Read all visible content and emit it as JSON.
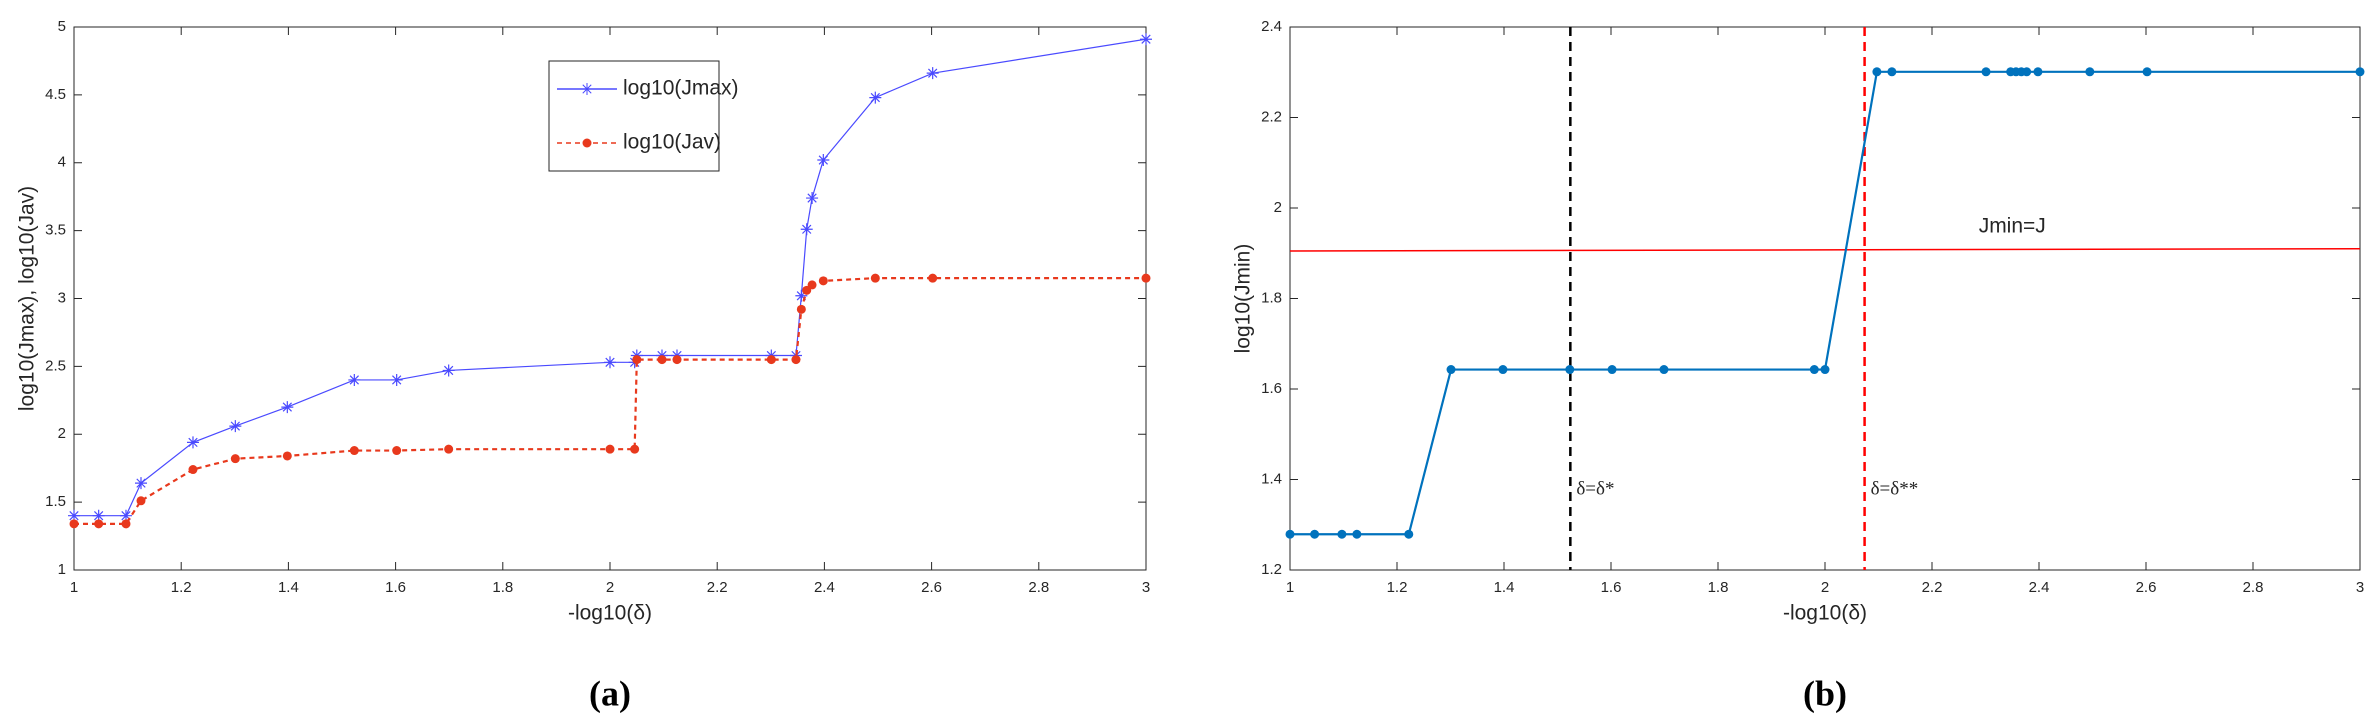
{
  "chart_data": [
    {
      "type": "line",
      "panel_label": "(a)",
      "x_label": "-log10(δ)",
      "y_label": "log10(Jmax), log10(Jav)",
      "xlim": [
        1,
        3
      ],
      "xticks": [
        1,
        1.2,
        1.4,
        1.6,
        1.8,
        2,
        2.2,
        2.4,
        2.6,
        2.8,
        3
      ],
      "ylim": [
        1,
        5
      ],
      "yticks": [
        1,
        1.5,
        2,
        2.5,
        3,
        3.5,
        4,
        4.5,
        5
      ],
      "grid": false,
      "legend": "top-center",
      "series": [
        {
          "name": "log10(Jmax)",
          "color": "#4a4aff",
          "marker": "star",
          "line_style": "solid",
          "x": [
            1,
            1.046,
            1.097,
            1.125,
            1.222,
            1.301,
            1.398,
            1.523,
            1.602,
            1.699,
            2,
            2.046,
            2.05,
            2.097,
            2.125,
            2.301,
            2.347,
            2.357,
            2.367,
            2.377,
            2.398,
            2.495,
            2.602,
            3
          ],
          "values": [
            1.4,
            1.4,
            1.4,
            1.64,
            1.94,
            2.06,
            2.2,
            2.4,
            2.4,
            2.47,
            2.53,
            2.53,
            2.58,
            2.58,
            2.58,
            2.58,
            2.58,
            3.02,
            3.51,
            3.74,
            4.02,
            4.48,
            4.66,
            4.91
          ]
        },
        {
          "name": "log10(Jav)",
          "color": "#e8391d",
          "marker": "dot",
          "line_style": "dashed",
          "x": [
            1,
            1.046,
            1.097,
            1.125,
            1.222,
            1.301,
            1.398,
            1.523,
            1.602,
            1.699,
            2,
            2.046,
            2.05,
            2.097,
            2.125,
            2.301,
            2.347,
            2.357,
            2.367,
            2.377,
            2.398,
            2.495,
            2.602,
            3
          ],
          "values": [
            1.34,
            1.34,
            1.34,
            1.51,
            1.74,
            1.82,
            1.84,
            1.88,
            1.88,
            1.89,
            1.89,
            1.89,
            2.55,
            2.55,
            2.55,
            2.55,
            2.55,
            2.92,
            3.06,
            3.1,
            3.13,
            3.15,
            3.15,
            3.15
          ]
        }
      ]
    },
    {
      "type": "line",
      "panel_label": "(b)",
      "x_label": "-log10(δ)",
      "y_label": "log10(Jmin)",
      "xlim": [
        1,
        3
      ],
      "xticks": [
        1,
        1.2,
        1.4,
        1.6,
        1.8,
        2,
        2.2,
        2.4,
        2.6,
        2.8,
        3
      ],
      "ylim": [
        1.2,
        2.4
      ],
      "yticks": [
        1.2,
        1.4,
        1.6,
        1.8,
        2,
        2.2,
        2.4
      ],
      "grid": false,
      "series": [
        {
          "name": "log10(Jmin)",
          "color": "#0072bd",
          "marker": "dot",
          "line_style": "solid",
          "x": [
            1,
            1.046,
            1.097,
            1.125,
            1.222,
            1.301,
            1.398,
            1.523,
            1.602,
            1.699,
            1.98,
            2,
            2.097,
            2.125,
            2.301,
            2.347,
            2.357,
            2.367,
            2.377,
            2.398,
            2.495,
            2.602,
            3
          ],
          "values": [
            1.279,
            1.279,
            1.279,
            1.279,
            1.279,
            1.643,
            1.643,
            1.643,
            1.643,
            1.643,
            1.643,
            1.643,
            2.301,
            2.301,
            2.301,
            2.301,
            2.301,
            2.301,
            2.301,
            2.301,
            2.301,
            2.301,
            2.301
          ]
        }
      ],
      "vlines": [
        {
          "x": 1.524,
          "label": "δ=δ*",
          "color": "#000000"
        },
        {
          "x": 2.074,
          "label": "δ=δ**",
          "color": "#ff0000"
        }
      ],
      "hline": {
        "x": [
          1,
          3
        ],
        "y": [
          1.905,
          1.91
        ],
        "label": "Jmin=J",
        "color": "#ff0000"
      }
    }
  ]
}
